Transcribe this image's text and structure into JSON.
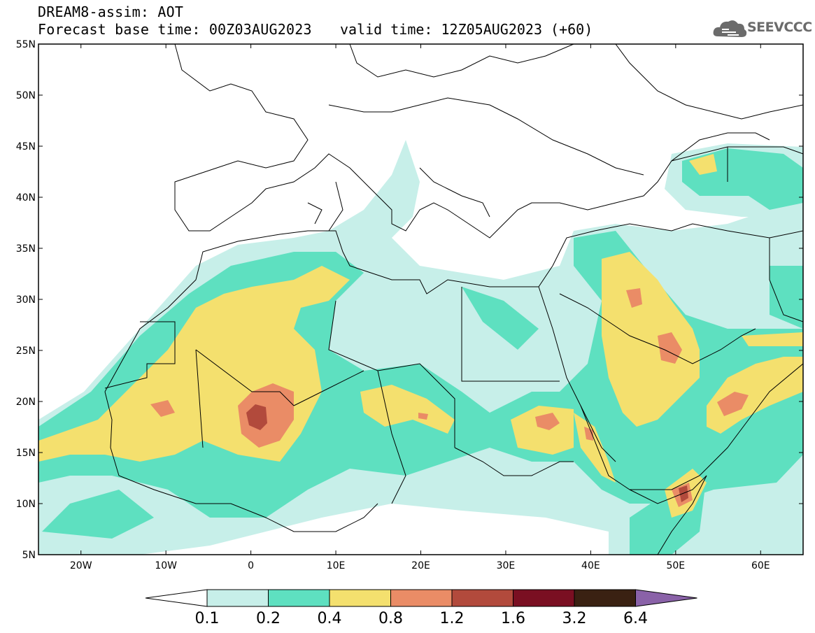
{
  "header": {
    "title": "DREAM8-assim: AOT",
    "base_time": "Forecast base time: 00Z03AUG2023",
    "valid_time": "valid time: 12Z05AUG2023 (+60)"
  },
  "logo": {
    "text": "SEEVCCC",
    "icon": "cloud-icon"
  },
  "map": {
    "lat_ticks": [
      "55N",
      "50N",
      "45N",
      "40N",
      "35N",
      "30N",
      "25N",
      "20N",
      "15N",
      "10N",
      "5N"
    ],
    "lon_ticks": [
      "20W",
      "10W",
      "0",
      "10E",
      "20E",
      "30E",
      "40E",
      "50E",
      "60E"
    ],
    "lat_range": [
      5,
      55
    ],
    "lon_range": [
      -25,
      65
    ]
  },
  "colorbar": {
    "labels": [
      "0.1",
      "0.2",
      "0.4",
      "0.8",
      "1.2",
      "1.6",
      "3.2",
      "6.4"
    ],
    "colors": [
      "#ffffff",
      "#c7efe9",
      "#5ee0c0",
      "#f4e06e",
      "#ea8c66",
      "#b24a3c",
      "#7a0f22",
      "#3a2112",
      "#8a62a8"
    ]
  }
}
